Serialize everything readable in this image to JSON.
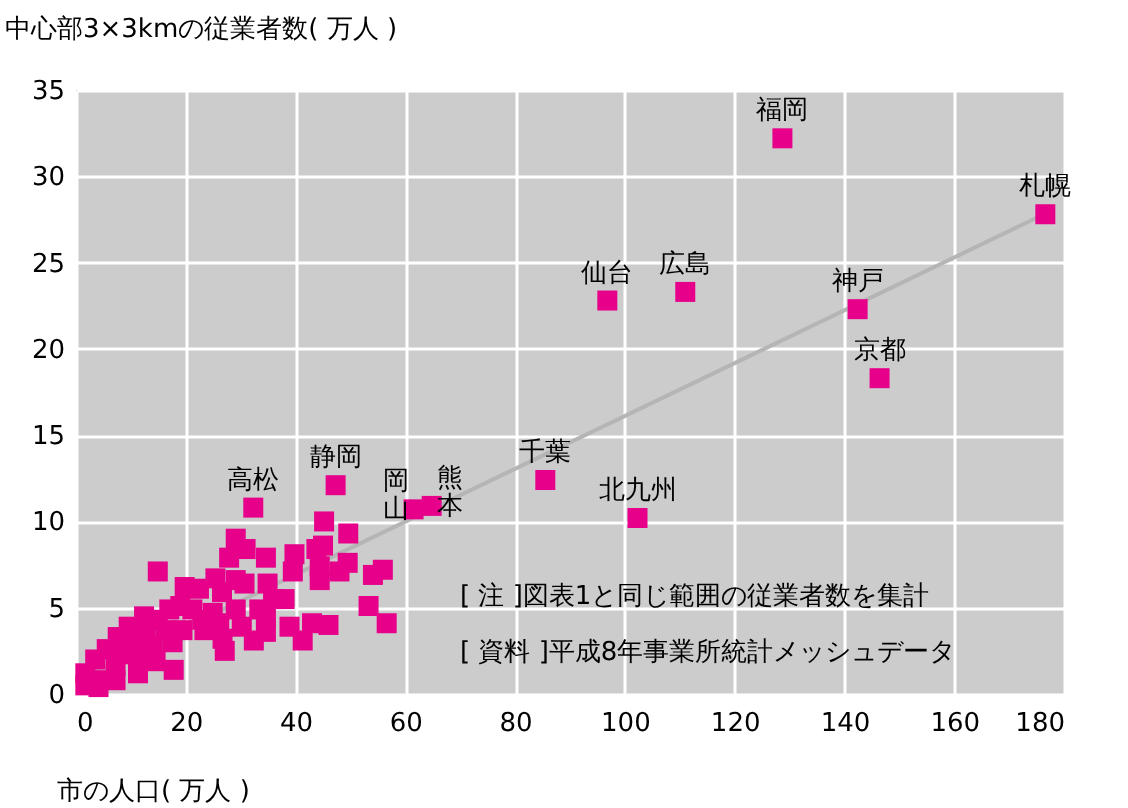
{
  "chart_data": {
    "type": "scatter",
    "ylabel": "中心部3×3kmの従業者数( 万人 )",
    "xlabel": "市の人口( 万人 )",
    "xlim": [
      0,
      180
    ],
    "xticks": [
      0,
      20,
      40,
      60,
      80,
      100,
      120,
      140,
      160,
      180
    ],
    "ylim": [
      0,
      35
    ],
    "yticks": [
      0,
      5,
      10,
      15,
      20,
      25,
      30,
      35
    ],
    "grid": true,
    "series": [
      {
        "type": "line",
        "color": "#b5b5b5",
        "x": [
          0,
          177
        ],
        "values": [
          0.8,
          27.9
        ]
      },
      {
        "color": "#e6008a",
        "marker": "square",
        "x": [
          128.7,
          176.6,
          96.8,
          111.0,
          142.4,
          146.4,
          85.5,
          102.3,
          47.3,
          61.5,
          64.8,
          32.3,
          45.2,
          49.6,
          29.1,
          30.9,
          27.9,
          34.6,
          39.8,
          43.8,
          45.0,
          44.4,
          39.5,
          49.5,
          48.0,
          54.1,
          55.9,
          14.9,
          44.4,
          25.4,
          29.1,
          30.7,
          34.9,
          19.8,
          22.4,
          26.6,
          35.9,
          38.0,
          19.0,
          17.0,
          21.2,
          24.9,
          29.1,
          33.4,
          53.3,
          12.4,
          14.9,
          23.0,
          26.1,
          30.2,
          34.6,
          38.9,
          43.0,
          46.0,
          56.6,
          9.6,
          12.7,
          16.3,
          19.4,
          23.4,
          26.7,
          32.4,
          34.6,
          41.3,
          7.6,
          11.0,
          14.0,
          17.6,
          27.1,
          5.6,
          9.0,
          11.3,
          14.5,
          17.8,
          3.5,
          7.2,
          11.3,
          1.7,
          4.1,
          1.7,
          7.2,
          4.1
        ],
        "values": [
          32.2,
          27.8,
          22.8,
          23.3,
          22.3,
          18.3,
          12.4,
          10.2,
          12.1,
          10.7,
          10.9,
          10.8,
          10.0,
          9.3,
          9.0,
          8.4,
          7.9,
          7.9,
          8.1,
          8.4,
          8.6,
          7.4,
          7.1,
          7.6,
          7.1,
          6.9,
          7.2,
          7.1,
          6.6,
          6.7,
          6.6,
          6.4,
          6.4,
          6.2,
          6.1,
          5.9,
          5.5,
          5.5,
          5.1,
          4.9,
          4.9,
          4.7,
          4.9,
          4.9,
          5.1,
          4.5,
          4.3,
          4.3,
          4.1,
          3.9,
          4.5,
          3.9,
          4.1,
          4.0,
          4.1,
          3.9,
          3.6,
          3.7,
          3.7,
          3.7,
          3.2,
          3.1,
          3.6,
          3.1,
          3.3,
          3.0,
          2.8,
          3.0,
          2.5,
          2.6,
          2.3,
          2.0,
          1.9,
          1.4,
          2.0,
          1.6,
          1.2,
          1.2,
          0.8,
          0.5,
          0.8,
          0.4
        ]
      }
    ],
    "annotations": [
      {
        "text": "福岡",
        "x": 128.7,
        "y": 32.2
      },
      {
        "text": "札幌",
        "x": 176.6,
        "y": 27.8
      },
      {
        "text": "仙台",
        "x": 96.8,
        "y": 22.8
      },
      {
        "text": "広島",
        "x": 111.0,
        "y": 23.3
      },
      {
        "text": "神戸",
        "x": 142.4,
        "y": 22.3
      },
      {
        "text": "京都",
        "x": 146.4,
        "y": 18.3
      },
      {
        "text": "千葉",
        "x": 85.5,
        "y": 12.4
      },
      {
        "text": "北九州",
        "x": 102.3,
        "y": 10.2
      },
      {
        "text": "静岡",
        "x": 47.3,
        "y": 12.1
      },
      {
        "text": "岡山",
        "x": 61.5,
        "y": 10.7
      },
      {
        "text": "熊本",
        "x": 64.8,
        "y": 10.9
      },
      {
        "text": "高松",
        "x": 32.3,
        "y": 10.8
      },
      "[ 注 ]図表1と同じ範囲の従業者数を集計",
      "[ 資料 ]平成8年事業所統計メッシュデータ"
    ]
  }
}
